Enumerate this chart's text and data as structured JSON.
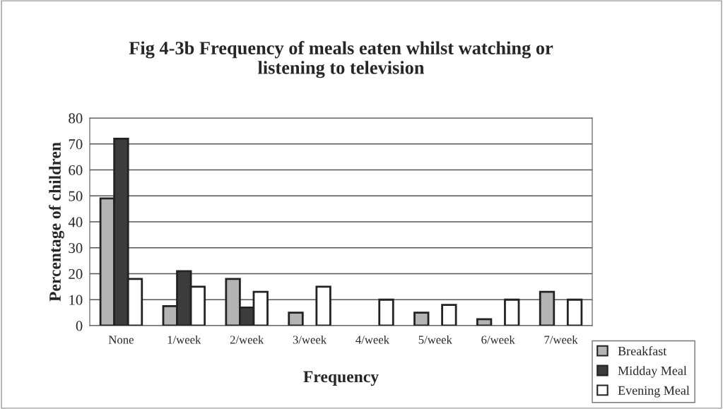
{
  "chart_data": {
    "type": "bar",
    "title": "Fig 4-3b Frequency of meals eaten whilst watching or\nlistening to television",
    "xlabel": "Frequency",
    "ylabel": "Percentage of children",
    "categories": [
      "None",
      "1/week",
      "2/week",
      "3/week",
      "4/week",
      "5/week",
      "6/week",
      "7/week"
    ],
    "series": [
      {
        "name": "Breakfast",
        "color": "#b4b4b4",
        "values": [
          49,
          7.5,
          18,
          5,
          null,
          5,
          2.5,
          13
        ]
      },
      {
        "name": "Midday Meal",
        "color": "#3c3c3c",
        "values": [
          72,
          21,
          7,
          null,
          null,
          null,
          null,
          null
        ]
      },
      {
        "name": "Evening Meal",
        "color": "#ffffff",
        "values": [
          18,
          15,
          13,
          15,
          10,
          8,
          10,
          10
        ]
      }
    ],
    "ylim": [
      0,
      80
    ],
    "yticks": [
      0,
      10,
      20,
      30,
      40,
      50,
      60,
      70,
      80
    ],
    "grid": "y",
    "legend": "bottom right"
  }
}
